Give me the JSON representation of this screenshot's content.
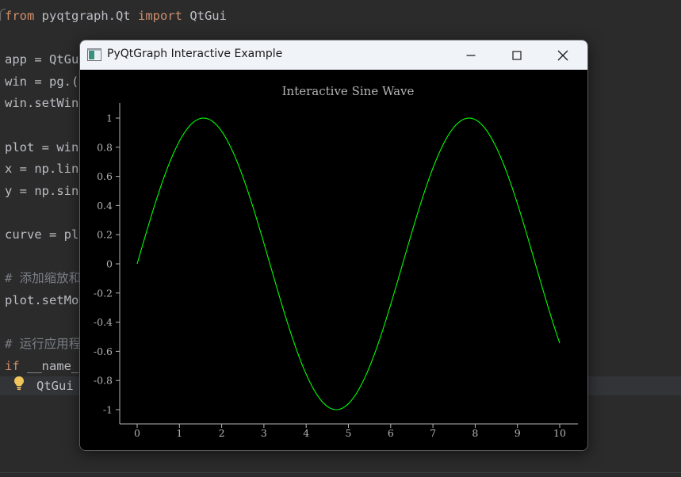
{
  "editor": {
    "lines": [
      {
        "segments": [
          {
            "t": "from",
            "c": "kw"
          },
          {
            "t": " pyqtgraph.Qt ",
            "c": ""
          },
          {
            "t": "import",
            "c": "kw"
          },
          {
            "t": " QtGui",
            "c": ""
          }
        ]
      },
      {
        "segments": []
      },
      {
        "segments": [
          {
            "t": "app = QtGu",
            "c": ""
          }
        ]
      },
      {
        "segments": [
          {
            "t": "win = pg.(",
            "c": ""
          }
        ]
      },
      {
        "segments": [
          {
            "t": "win.setWin",
            "c": ""
          }
        ]
      },
      {
        "segments": []
      },
      {
        "segments": [
          {
            "t": "plot = win",
            "c": ""
          }
        ]
      },
      {
        "segments": [
          {
            "t": "x = np.lin",
            "c": ""
          }
        ]
      },
      {
        "segments": [
          {
            "t": "y = np.sin",
            "c": ""
          }
        ]
      },
      {
        "segments": []
      },
      {
        "segments": [
          {
            "t": "curve = pl",
            "c": ""
          }
        ]
      },
      {
        "segments": []
      },
      {
        "segments": [
          {
            "t": "# 添加缩放和",
            "c": "cm"
          }
        ]
      },
      {
        "segments": [
          {
            "t": "plot.setMo",
            "c": ""
          }
        ]
      },
      {
        "segments": []
      },
      {
        "segments": [
          {
            "t": "# 运行应用程",
            "c": "cm"
          }
        ]
      },
      {
        "segments": [
          {
            "t": "if",
            "c": "kw"
          },
          {
            "t": " __name_",
            "c": ""
          }
        ]
      }
    ],
    "hint_text": "QtGui",
    "right_fragment": ")"
  },
  "window": {
    "title": "PyQtGraph Interactive Example",
    "controls": {
      "minimize_icon": "minimize-icon",
      "maximize_icon": "maximize-icon",
      "close_icon": "close-icon"
    }
  },
  "chart_data": {
    "type": "line",
    "title": "Interactive Sine Wave",
    "xlabel": "",
    "ylabel": "",
    "function": "sin(x)",
    "xlim": [
      0,
      10
    ],
    "ylim": [
      -1,
      1
    ],
    "x_ticks": [
      0,
      1,
      2,
      3,
      4,
      5,
      6,
      7,
      8,
      9,
      10
    ],
    "y_ticks": [
      1,
      0.8,
      0.6,
      0.4,
      0.2,
      0,
      -0.2,
      -0.4,
      -0.6,
      -0.8,
      -1
    ],
    "series": [
      {
        "color": "#00ff00",
        "x": [
          0,
          0.25,
          0.5,
          0.75,
          1,
          1.25,
          1.5,
          1.75,
          2,
          2.25,
          2.5,
          2.75,
          3,
          3.25,
          3.5,
          3.75,
          4,
          4.25,
          4.5,
          4.75,
          5,
          5.25,
          5.5,
          5.75,
          6,
          6.25,
          6.5,
          6.75,
          7,
          7.25,
          7.5,
          7.75,
          8,
          8.25,
          8.5,
          8.75,
          9,
          9.25,
          9.5,
          9.75,
          10
        ],
        "y": [
          0,
          0.247,
          0.479,
          0.682,
          0.841,
          0.949,
          0.997,
          0.984,
          0.909,
          0.778,
          0.598,
          0.382,
          0.141,
          -0.108,
          -0.351,
          -0.572,
          -0.757,
          -0.895,
          -0.978,
          -0.999,
          -0.959,
          -0.859,
          -0.706,
          -0.508,
          -0.279,
          -0.033,
          0.215,
          0.45,
          0.657,
          0.823,
          0.938,
          0.994,
          0.989,
          0.923,
          0.798,
          0.624,
          0.412,
          0.174,
          -0.075,
          -0.319,
          -0.544
        ]
      }
    ],
    "grid": false,
    "axis_color": "#b4b4b4",
    "background": "#000000"
  }
}
